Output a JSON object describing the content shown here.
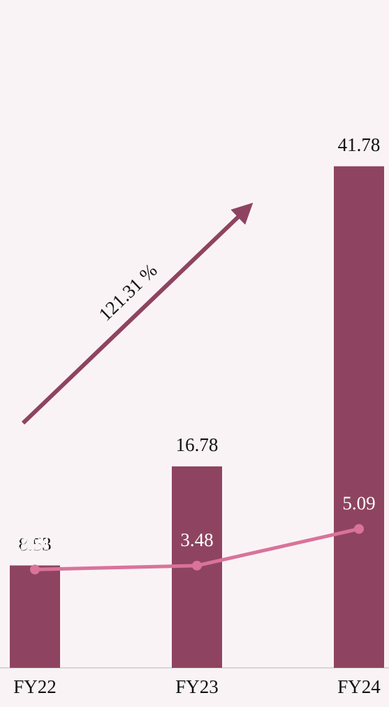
{
  "chart_data": {
    "type": "bar",
    "categories": [
      "FY22",
      "FY23",
      "FY24"
    ],
    "series": [
      {
        "type": "bar",
        "color": "#8e4460",
        "values": [
          8.53,
          16.78,
          41.78
        ]
      },
      {
        "type": "line",
        "axis": "y2",
        "color": "#d9739a",
        "values": [
          3.31,
          3.48,
          5.09
        ]
      }
    ],
    "ylim": [
      0,
      42
    ],
    "y2lim": [
      -1,
      21.1
    ],
    "annotation": "121.31 %"
  }
}
